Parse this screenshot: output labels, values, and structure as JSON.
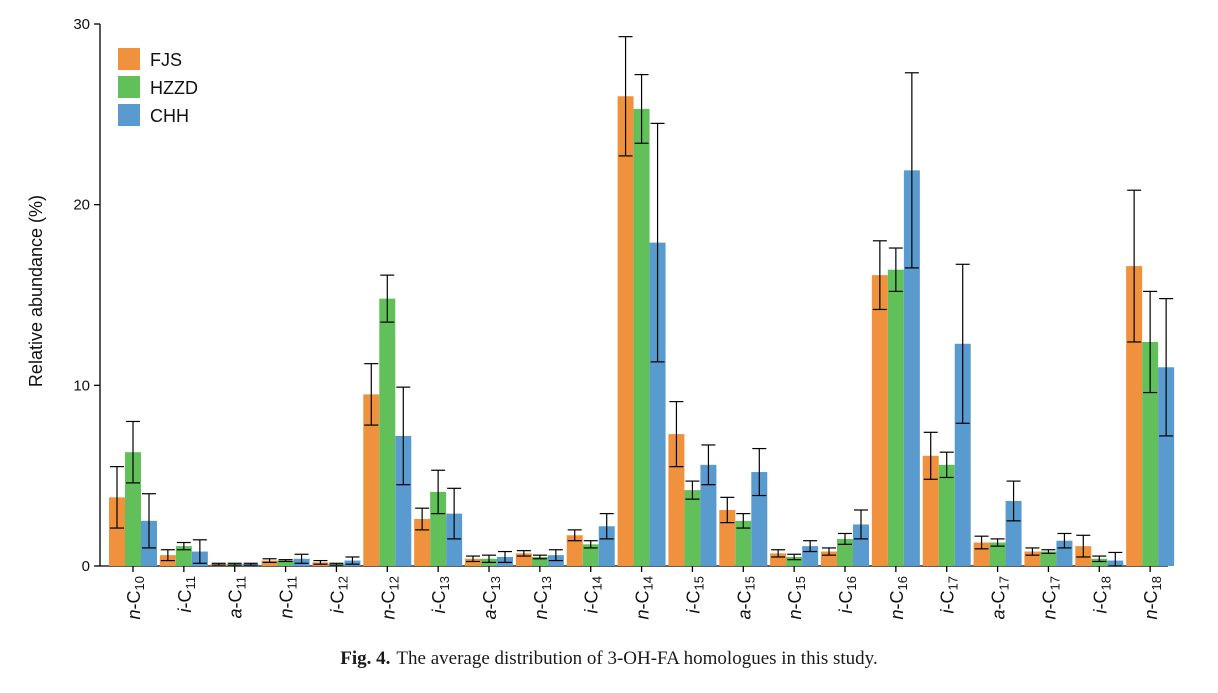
{
  "figure": {
    "caption_label": "Fig. 4.",
    "caption_text": "The average distribution of 3-OH-FA homologues in this study."
  },
  "chart_data": {
    "type": "bar",
    "ylabel": "Relative abundance (%)",
    "xlabel": "",
    "ylim": [
      0,
      30
    ],
    "yticks": [
      0,
      10,
      20,
      30
    ],
    "grid": false,
    "legend_position": "top-left",
    "categories": [
      {
        "prefix": "n",
        "sub": "10"
      },
      {
        "prefix": "i",
        "sub": "11"
      },
      {
        "prefix": "a",
        "sub": "11"
      },
      {
        "prefix": "n",
        "sub": "11"
      },
      {
        "prefix": "i",
        "sub": "12"
      },
      {
        "prefix": "n",
        "sub": "12"
      },
      {
        "prefix": "i",
        "sub": "13"
      },
      {
        "prefix": "a",
        "sub": "13"
      },
      {
        "prefix": "n",
        "sub": "13"
      },
      {
        "prefix": "i",
        "sub": "14"
      },
      {
        "prefix": "n",
        "sub": "14"
      },
      {
        "prefix": "i",
        "sub": "15"
      },
      {
        "prefix": "a",
        "sub": "15"
      },
      {
        "prefix": "n",
        "sub": "15"
      },
      {
        "prefix": "i",
        "sub": "16"
      },
      {
        "prefix": "n",
        "sub": "16"
      },
      {
        "prefix": "i",
        "sub": "17"
      },
      {
        "prefix": "a",
        "sub": "17"
      },
      {
        "prefix": "n",
        "sub": "17"
      },
      {
        "prefix": "i",
        "sub": "18"
      },
      {
        "prefix": "n",
        "sub": "18"
      }
    ],
    "series": [
      {
        "name": "FJS",
        "color": "#F0913D",
        "values": [
          3.8,
          0.6,
          0.1,
          0.3,
          0.2,
          9.5,
          2.6,
          0.4,
          0.7,
          1.7,
          26.0,
          7.3,
          3.1,
          0.7,
          0.8,
          16.1,
          6.1,
          1.3,
          0.8,
          1.1,
          16.6
        ],
        "errors": [
          1.7,
          0.3,
          0.05,
          0.1,
          0.1,
          1.7,
          0.6,
          0.15,
          0.15,
          0.3,
          3.3,
          1.8,
          0.7,
          0.2,
          0.2,
          1.9,
          1.3,
          0.35,
          0.2,
          0.6,
          4.2
        ]
      },
      {
        "name": "HZZD",
        "color": "#62C05A",
        "values": [
          6.3,
          1.1,
          0.1,
          0.3,
          0.1,
          14.8,
          4.1,
          0.4,
          0.5,
          1.2,
          25.3,
          4.2,
          2.5,
          0.5,
          1.5,
          16.4,
          5.6,
          1.3,
          0.8,
          0.4,
          12.4
        ],
        "errors": [
          1.7,
          0.2,
          0.05,
          0.05,
          0.05,
          1.3,
          1.2,
          0.2,
          0.1,
          0.2,
          1.9,
          0.5,
          0.4,
          0.15,
          0.3,
          1.2,
          0.7,
          0.2,
          0.1,
          0.15,
          2.8
        ]
      },
      {
        "name": "CHH",
        "color": "#5A9BCF",
        "values": [
          2.5,
          0.8,
          0.1,
          0.4,
          0.3,
          7.2,
          2.9,
          0.5,
          0.6,
          2.2,
          17.9,
          5.6,
          5.2,
          1.1,
          2.3,
          21.9,
          12.3,
          3.6,
          1.4,
          0.3,
          11.0
        ],
        "errors": [
          1.5,
          0.65,
          0.05,
          0.25,
          0.2,
          2.7,
          1.4,
          0.3,
          0.3,
          0.7,
          6.6,
          1.1,
          1.3,
          0.3,
          0.8,
          5.4,
          4.4,
          1.1,
          0.4,
          0.45,
          3.8
        ]
      }
    ]
  }
}
